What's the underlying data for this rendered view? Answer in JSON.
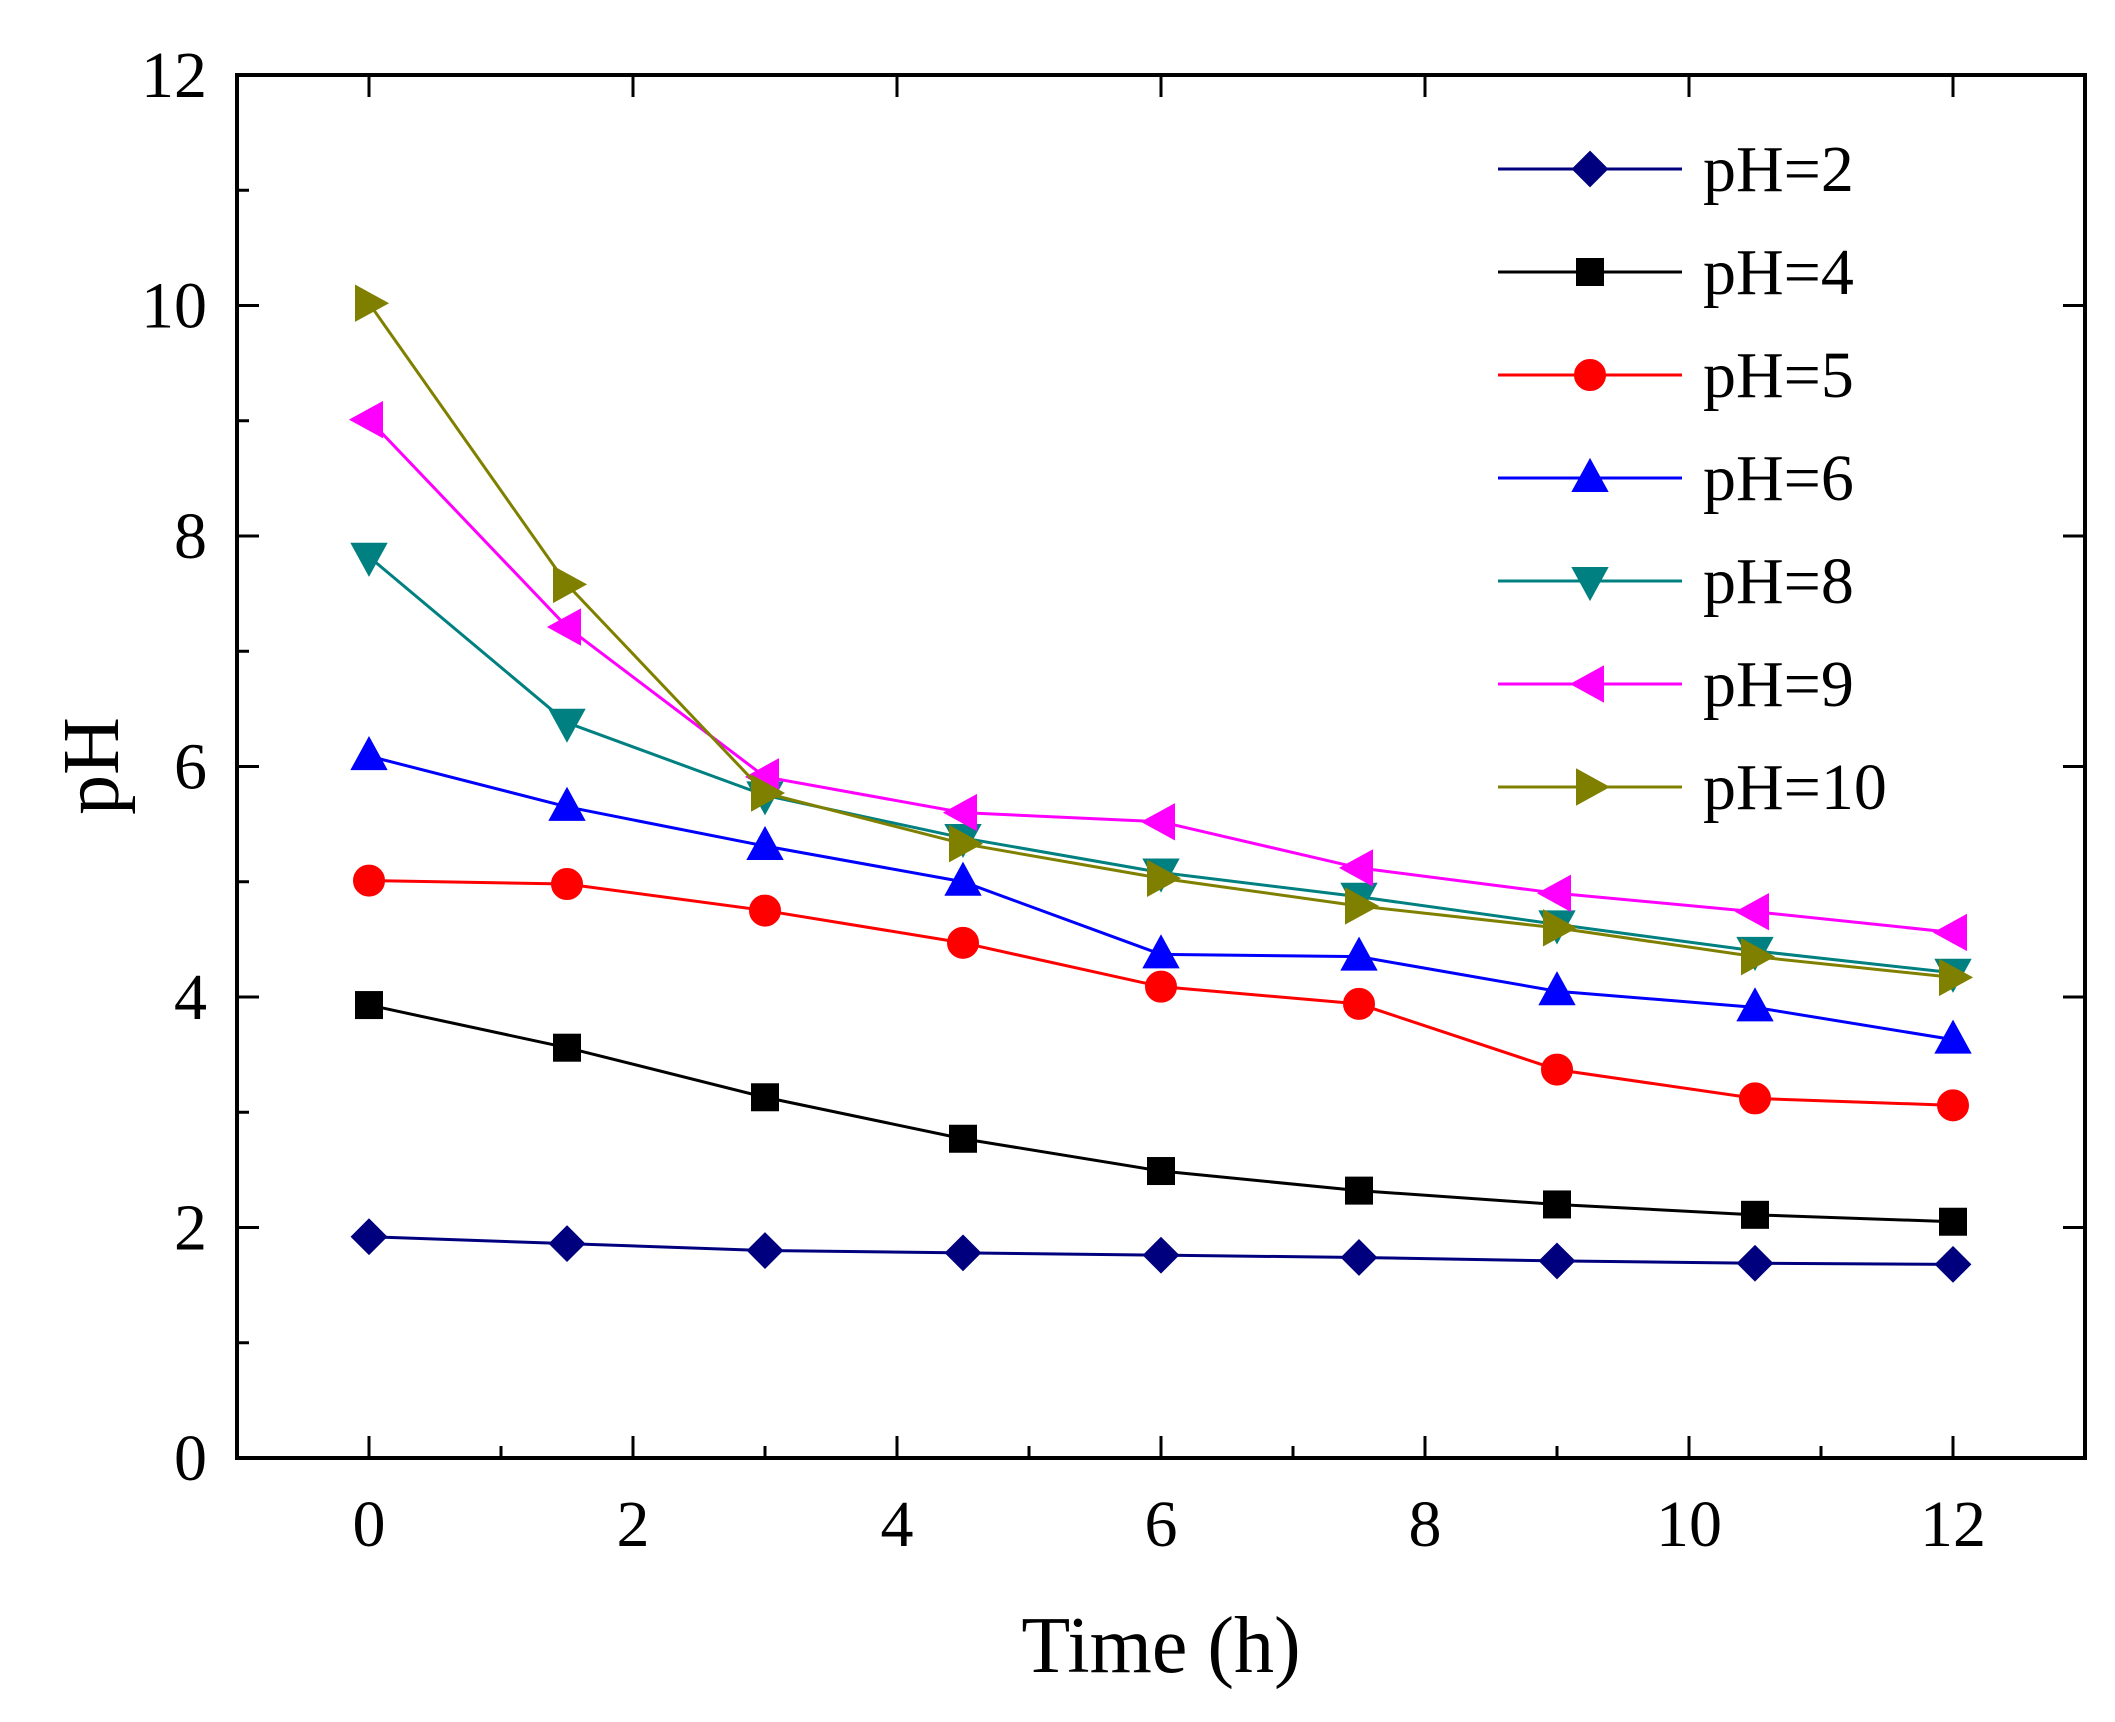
{
  "chart_data": {
    "type": "line",
    "title": "",
    "xlabel": "Time (h)",
    "ylabel": "pH",
    "xlim": [
      -1,
      13
    ],
    "ylim": [
      0,
      12
    ],
    "x_ticks": [
      "0",
      "2",
      "4",
      "6",
      "8",
      "10",
      "12"
    ],
    "y_ticks": [
      "0",
      "2",
      "4",
      "6",
      "8",
      "10",
      "12"
    ],
    "grid": false,
    "legend_position": "top-right",
    "x": [
      0,
      1.5,
      3,
      4.5,
      6,
      7.5,
      9,
      10.5,
      12
    ],
    "series": [
      {
        "name": "pH=2",
        "marker": "diamond",
        "color": "#00007f",
        "values": [
          1.92,
          1.86,
          1.8,
          1.78,
          1.76,
          1.74,
          1.71,
          1.69,
          1.68
        ]
      },
      {
        "name": "pH=4",
        "marker": "square",
        "color": "#000000",
        "values": [
          3.93,
          3.56,
          3.13,
          2.77,
          2.49,
          2.32,
          2.2,
          2.11,
          2.05
        ]
      },
      {
        "name": "pH=5",
        "marker": "circle",
        "color": "#ff0000",
        "values": [
          5.01,
          4.98,
          4.75,
          4.47,
          4.09,
          3.94,
          3.37,
          3.12,
          3.06
        ]
      },
      {
        "name": "pH=6",
        "marker": "triangle-up",
        "color": "#0000ff",
        "values": [
          6.09,
          5.65,
          5.31,
          5.0,
          4.37,
          4.35,
          4.05,
          3.91,
          3.63
        ]
      },
      {
        "name": "pH=8",
        "marker": "triangle-down",
        "color": "#008080",
        "values": [
          7.82,
          6.38,
          5.75,
          5.38,
          5.08,
          4.87,
          4.63,
          4.4,
          4.21
        ]
      },
      {
        "name": "pH=9",
        "marker": "triangle-left",
        "color": "#ff00ff",
        "values": [
          9.01,
          7.21,
          5.91,
          5.6,
          5.52,
          5.12,
          4.9,
          4.74,
          4.56
        ]
      },
      {
        "name": "pH=10",
        "marker": "triangle-right",
        "color": "#808000",
        "values": [
          10.02,
          7.58,
          5.77,
          5.33,
          5.03,
          4.79,
          4.6,
          4.35,
          4.17
        ]
      }
    ]
  }
}
